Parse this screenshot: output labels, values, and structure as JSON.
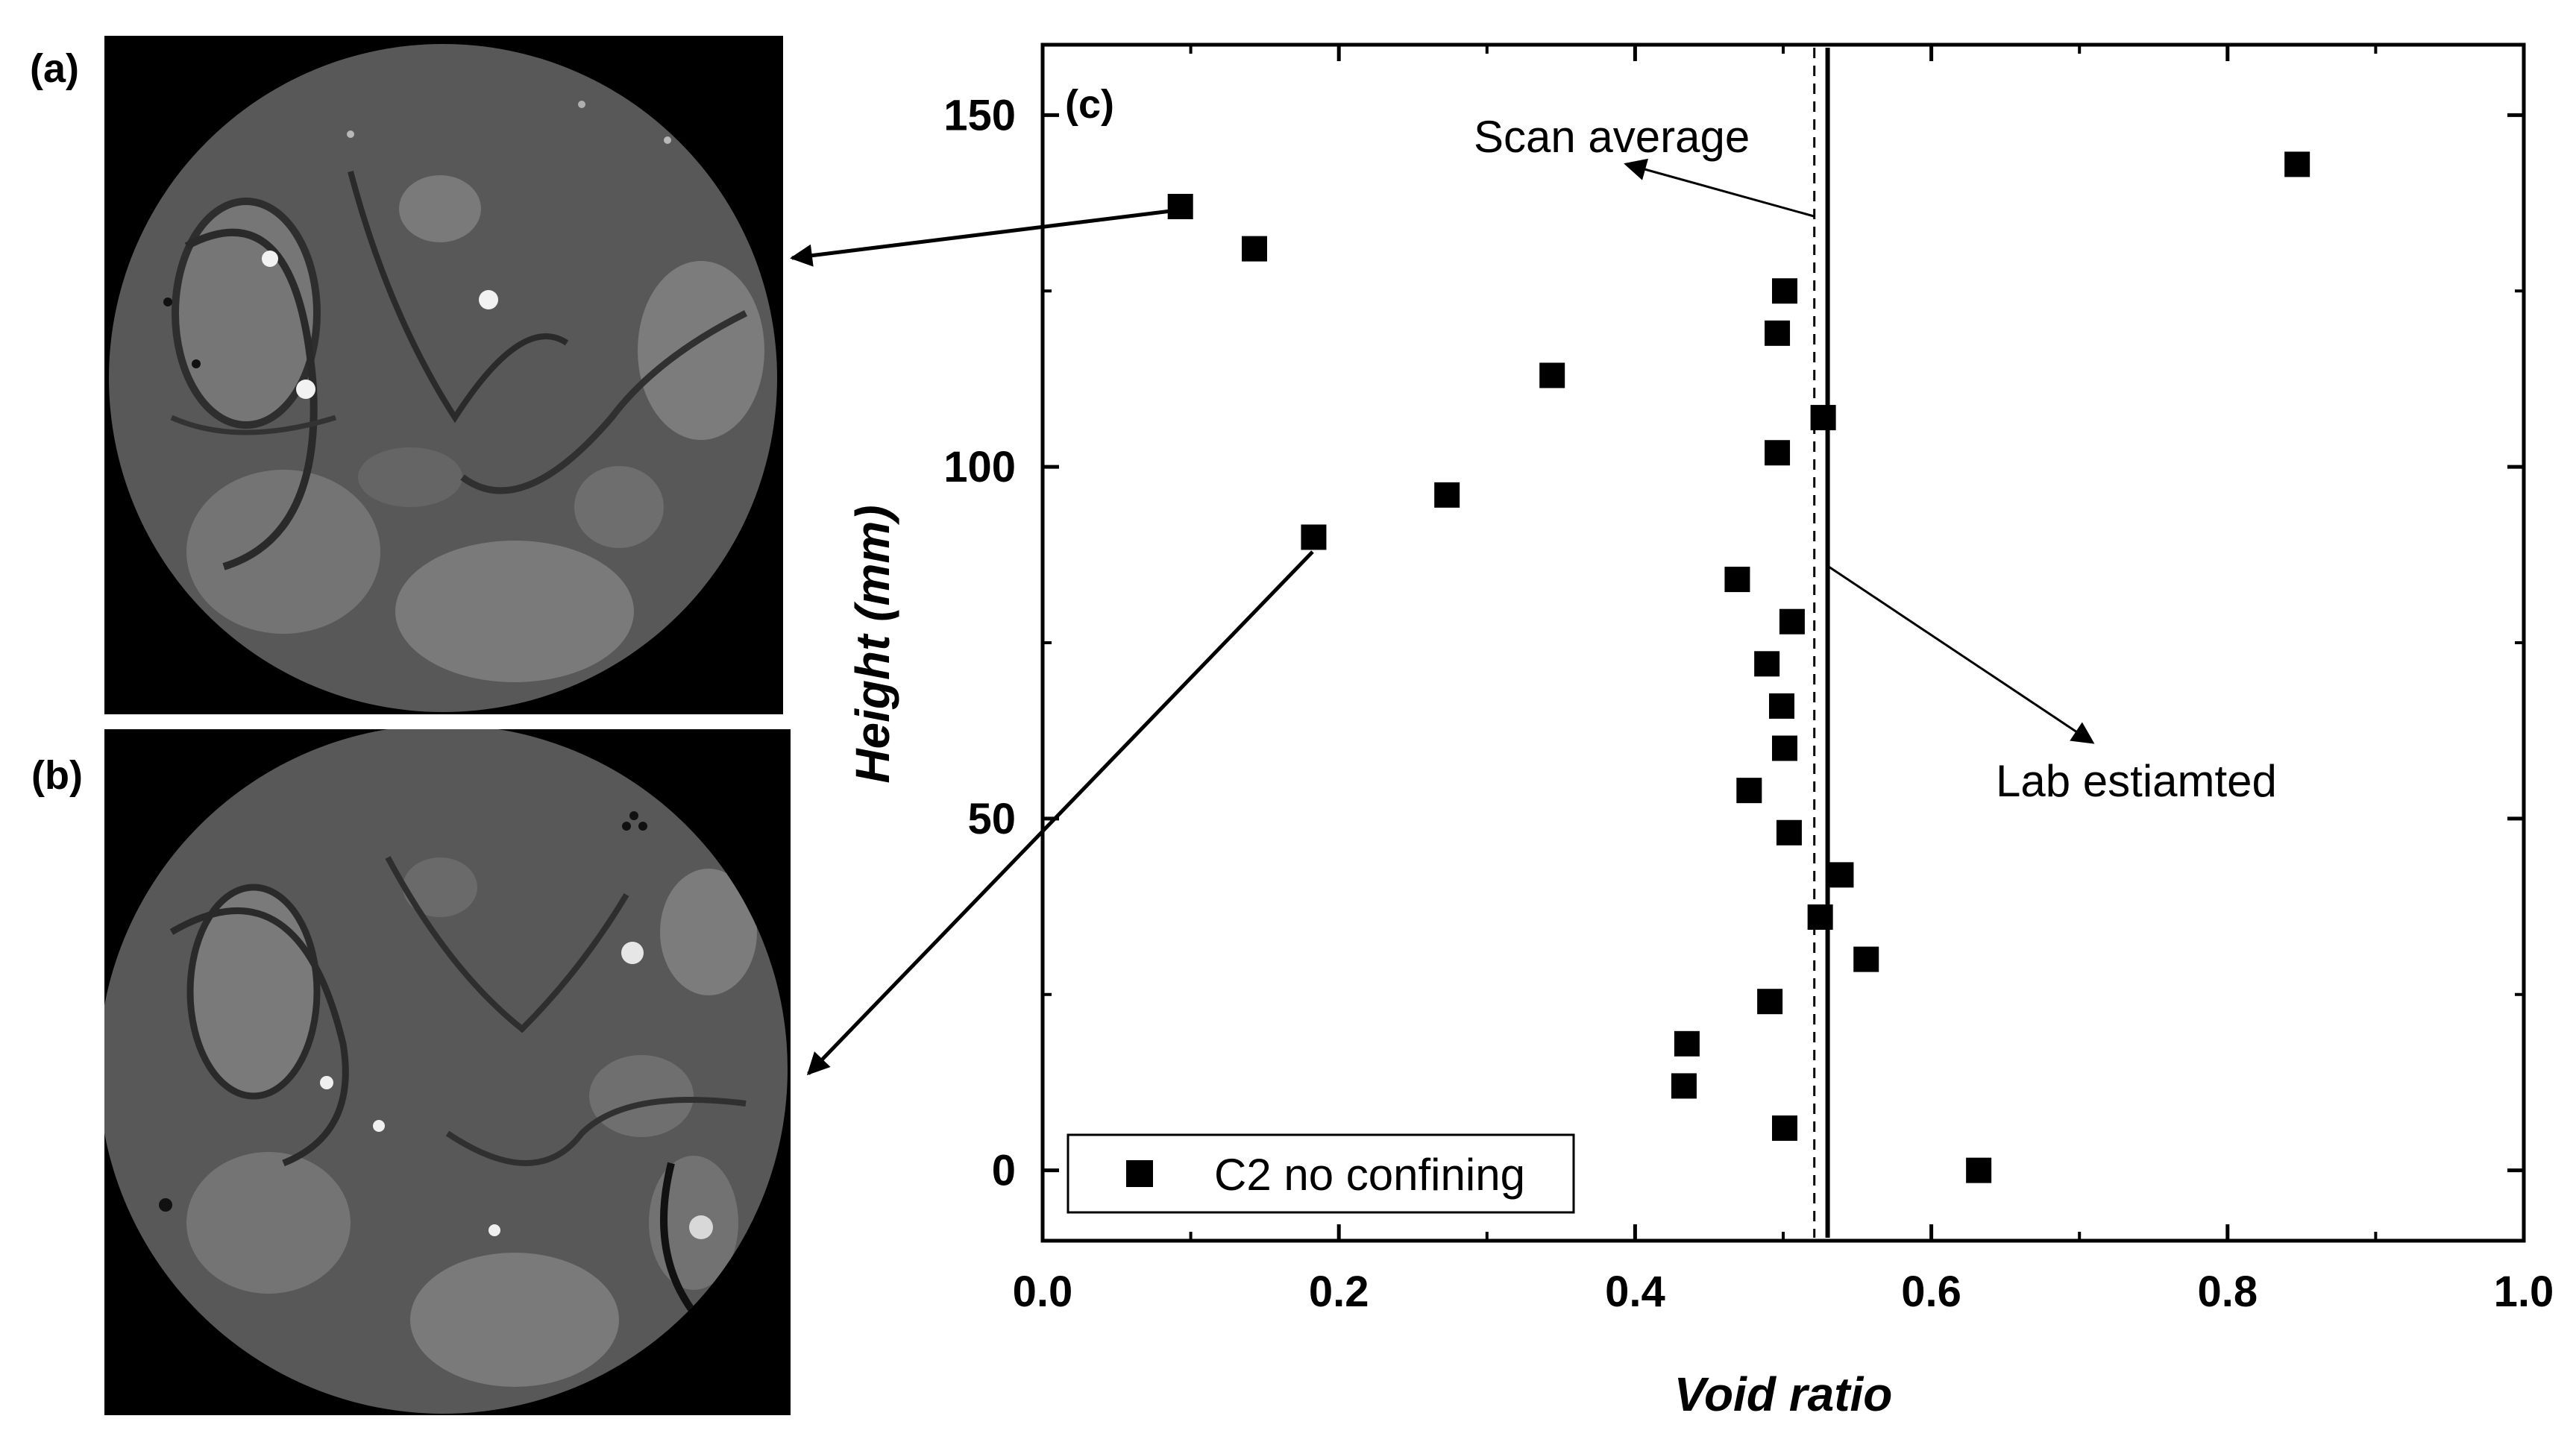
{
  "panels": {
    "a_label": "(a)",
    "b_label": "(b)",
    "c_label": "(c)"
  },
  "annotations": {
    "scan_average": "Scan average",
    "lab_estimated": "Lab estiamted"
  },
  "colors": {
    "background": "#ffffff",
    "axis": "#000000",
    "marker": "#000000",
    "ct_background": "#000000",
    "ct_matrix": "#5a5a5a",
    "ct_aggregate": "#7a7a7a"
  },
  "chart_data": {
    "type": "scatter",
    "xlabel": "Void ratio",
    "ylabel": "Height (mm)",
    "xlim": [
      0.0,
      1.0
    ],
    "ylim": [
      -10,
      160
    ],
    "xticks": [
      0.0,
      0.2,
      0.4,
      0.6,
      0.8,
      1.0
    ],
    "xtick_labels": [
      "0.0",
      "0.2",
      "0.4",
      "0.6",
      "0.8",
      "1.0"
    ],
    "yticks": [
      0,
      50,
      100,
      150
    ],
    "ytick_labels": [
      "0",
      "50",
      "100",
      "150"
    ],
    "grid": false,
    "legend_position": "bottom-left",
    "series": [
      {
        "name": "C2 no confining",
        "marker": "square",
        "points": [
          {
            "x": 0.093,
            "y": 137
          },
          {
            "x": 0.143,
            "y": 131
          },
          {
            "x": 0.501,
            "y": 125
          },
          {
            "x": 0.496,
            "y": 119
          },
          {
            "x": 0.344,
            "y": 113
          },
          {
            "x": 0.527,
            "y": 107
          },
          {
            "x": 0.496,
            "y": 102
          },
          {
            "x": 0.273,
            "y": 96
          },
          {
            "x": 0.183,
            "y": 90
          },
          {
            "x": 0.469,
            "y": 84
          },
          {
            "x": 0.506,
            "y": 78
          },
          {
            "x": 0.489,
            "y": 72
          },
          {
            "x": 0.499,
            "y": 66
          },
          {
            "x": 0.501,
            "y": 60
          },
          {
            "x": 0.477,
            "y": 54
          },
          {
            "x": 0.504,
            "y": 48
          },
          {
            "x": 0.539,
            "y": 42
          },
          {
            "x": 0.525,
            "y": 36
          },
          {
            "x": 0.556,
            "y": 30
          },
          {
            "x": 0.491,
            "y": 24
          },
          {
            "x": 0.435,
            "y": 18
          },
          {
            "x": 0.433,
            "y": 12
          },
          {
            "x": 0.501,
            "y": 6
          },
          {
            "x": 0.632,
            "y": 0
          },
          {
            "x": 0.847,
            "y": 143
          }
        ]
      }
    ],
    "reference_lines": [
      {
        "label": "Scan average",
        "x": 0.521,
        "style": "dashed"
      },
      {
        "label": "Lab estiamted",
        "x": 0.53,
        "style": "solid"
      }
    ]
  }
}
